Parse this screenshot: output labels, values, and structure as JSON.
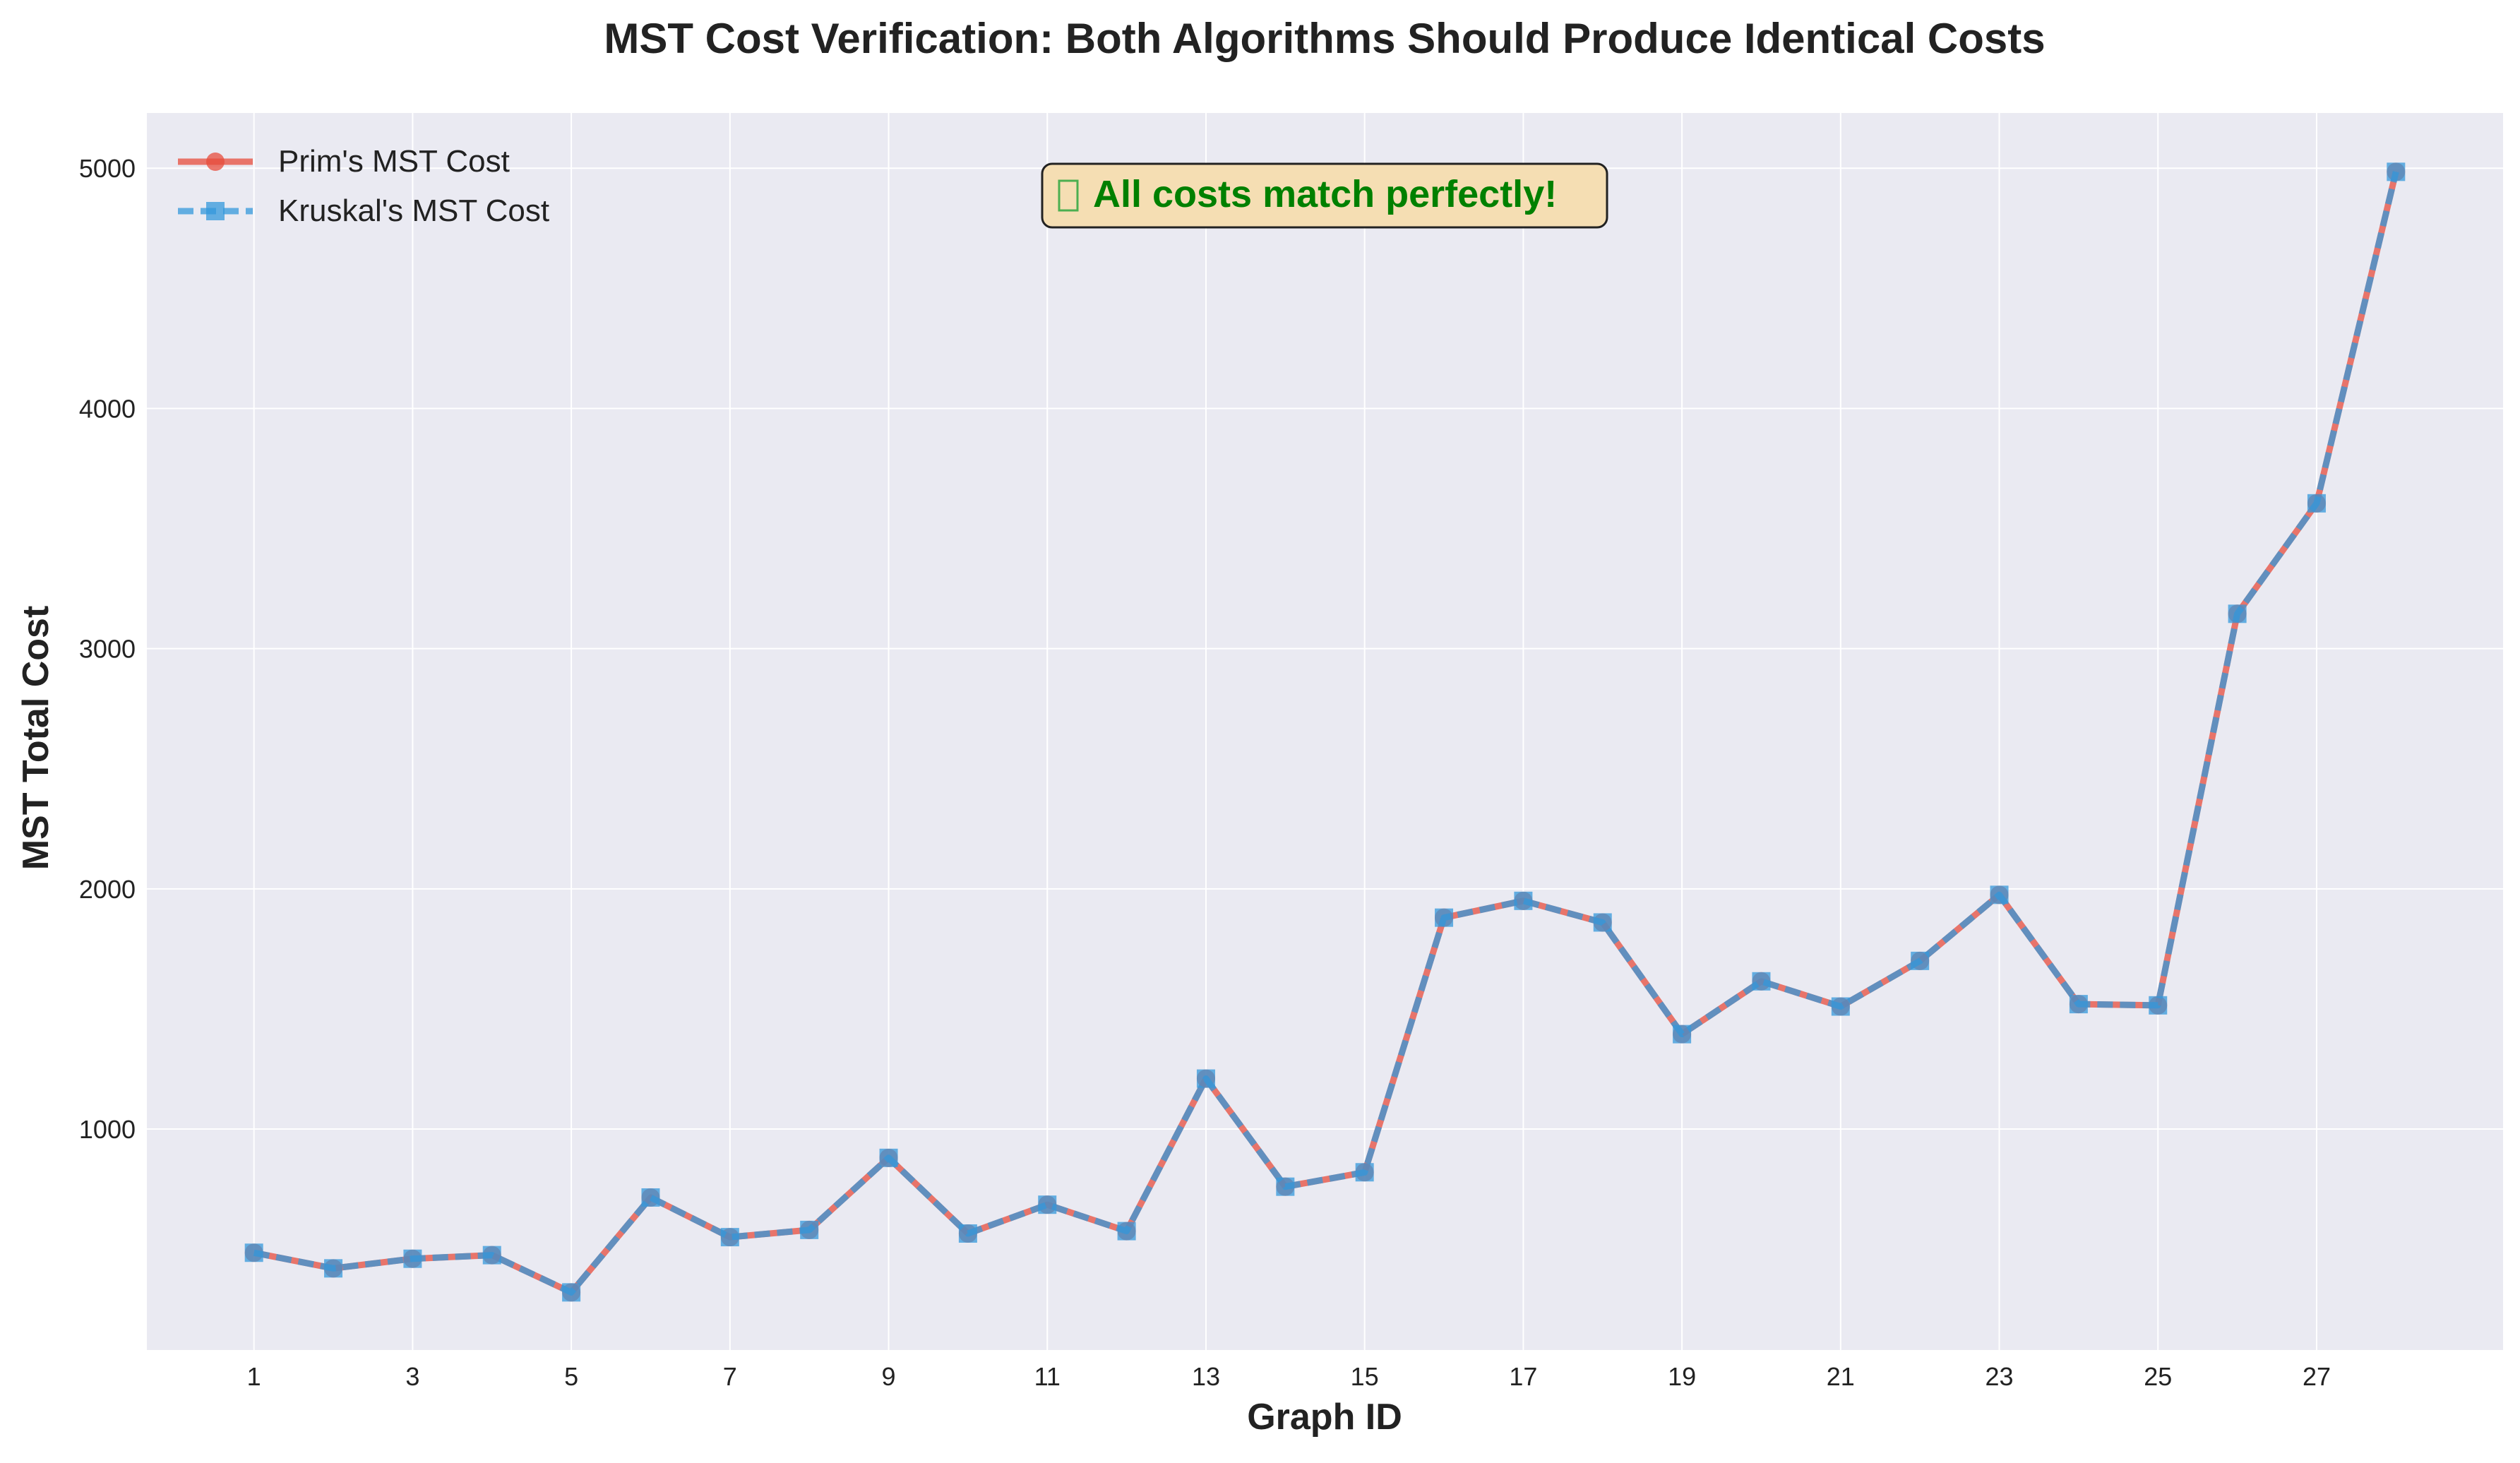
{
  "chart_data": {
    "type": "line",
    "title": "MST Cost Verification: Both Algorithms Should Produce Identical Costs",
    "xlabel": "Graph ID",
    "ylabel": "MST Total Cost",
    "x": [
      1,
      2,
      3,
      4,
      5,
      6,
      7,
      8,
      9,
      10,
      11,
      12,
      13,
      14,
      15,
      16,
      17,
      18,
      19,
      20,
      21,
      22,
      23,
      24,
      25,
      26,
      27,
      28
    ],
    "x_ticks": [
      1,
      3,
      5,
      7,
      9,
      11,
      13,
      15,
      17,
      19,
      21,
      23,
      25,
      27
    ],
    "y_ticks": [
      1000,
      2000,
      3000,
      4000,
      5000
    ],
    "xlim": [
      -0.35,
      29.35
    ],
    "ylim": [
      80,
      5230
    ],
    "grid": true,
    "legend_position": "top-left",
    "series": [
      {
        "name": "Prim's MST Cost",
        "color": "#e74c3c",
        "marker": "circle",
        "line_style": "solid",
        "values": [
          485,
          420,
          460,
          475,
          320,
          715,
          550,
          580,
          880,
          565,
          685,
          575,
          1210,
          760,
          820,
          1880,
          1950,
          1860,
          1395,
          1615,
          1510,
          1700,
          1975,
          1520,
          1515,
          3145,
          3605,
          4985
        ]
      },
      {
        "name": "Kruskal's MST Cost",
        "color": "#3498db",
        "marker": "square",
        "line_style": "dashed",
        "values": [
          485,
          420,
          460,
          475,
          320,
          715,
          550,
          580,
          880,
          565,
          685,
          575,
          1210,
          760,
          820,
          1880,
          1950,
          1860,
          1395,
          1615,
          1510,
          1700,
          1975,
          1520,
          1515,
          3145,
          3605,
          4985
        ]
      }
    ],
    "annotation": {
      "icon": "missing-glyph-box-icon",
      "text": "All costs match perfectly!",
      "text_color": "#008000",
      "box_color": "#f5deb3"
    }
  },
  "colors": {
    "plot_background": "#eaeaf2",
    "grid": "#ffffff",
    "text": "#222222"
  }
}
